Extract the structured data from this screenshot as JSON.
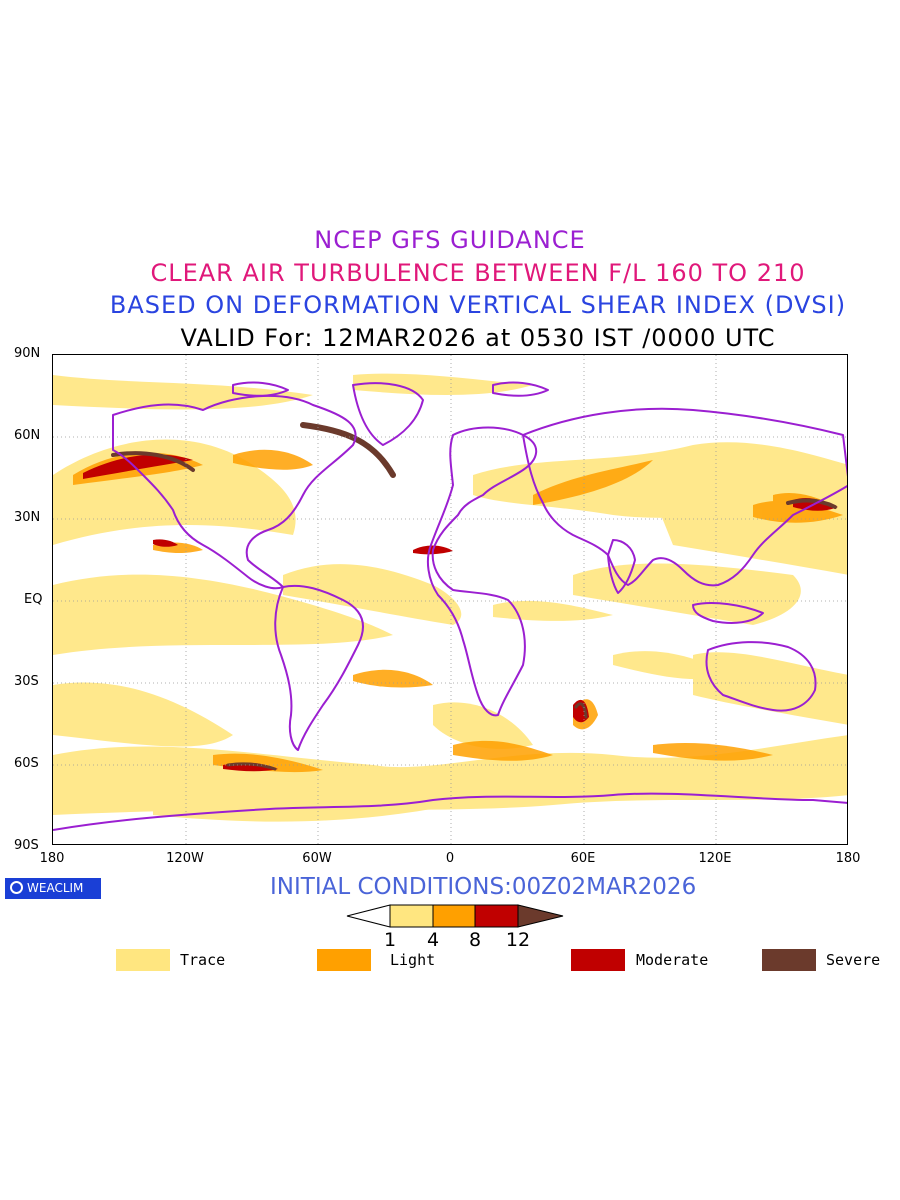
{
  "titles": {
    "line1": "NCEP GFS GUIDANCE",
    "line2": "CLEAR AIR TURBULENCE BETWEEN F/L 160 TO 210",
    "line3": "BASED ON DEFORMATION VERTICAL SHEAR INDEX (DVSI)",
    "line4": "VALID For: 12MAR2026 at 0530 IST /0000 UTC"
  },
  "title_colors": {
    "line1": "#9b1fd1",
    "line2": "#e0187a",
    "line3": "#2a44e0",
    "line4": "#000000"
  },
  "map": {
    "y_axis_labels": [
      "90N",
      "60N",
      "30N",
      "EQ",
      "30S",
      "60S",
      "90S"
    ],
    "x_axis_labels": [
      "180",
      "120W",
      "60W",
      "0",
      "60E",
      "120E",
      "180"
    ],
    "lat_range": [
      -90,
      90
    ],
    "lon_range": [
      -180,
      180
    ],
    "coastline_color": "#9b1fd1"
  },
  "logo": {
    "text": "WEACLIM",
    "icon": "weaclim-circle-logo-icon"
  },
  "initial_conditions": "INITIAL CONDITIONS:00Z02MAR2026",
  "colorbar": {
    "ticks": [
      "1",
      "4",
      "8",
      "12"
    ],
    "colors": [
      "#ffffff",
      "#ffe680",
      "#ffa000",
      "#c00000",
      "#6b3a2c"
    ]
  },
  "legend": [
    {
      "label": "Trace",
      "color": "#ffe680"
    },
    {
      "label": "Light",
      "color": "#ffa000"
    },
    {
      "label": "Moderate",
      "color": "#c00000"
    },
    {
      "label": "Severe",
      "color": "#6b3a2c"
    }
  ]
}
